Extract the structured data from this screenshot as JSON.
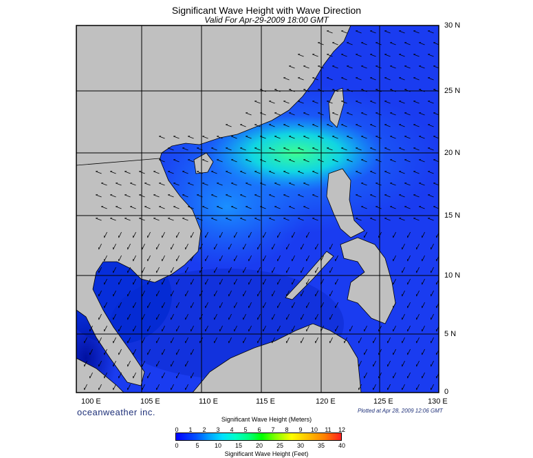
{
  "header": {
    "title": "Significant Wave Height with Wave Direction",
    "subtitle": "Valid For Apr-29-2009 18:00 GMT"
  },
  "map": {
    "lat_labels": [
      "30 N",
      "25 N",
      "20 N",
      "15 N",
      "10 N",
      "5 N",
      "0"
    ],
    "lon_labels": [
      "100 E",
      "105 E",
      "110 E",
      "115 E",
      "120 E",
      "125 E",
      "130 E"
    ],
    "land_color": "#c0c0c0",
    "sea_base_color": "#1a3cf0",
    "arrow_color": "#000000"
  },
  "footer": {
    "brand": "oceanweather inc.",
    "plotted": "Plotted at Apr 28, 2009 12:06 GMT"
  },
  "colorbar": {
    "title_meters": "Significant Wave Height (Meters)",
    "title_feet": "Significant Wave Height (Feet)",
    "meters_ticks": [
      "0",
      "1",
      "2",
      "3",
      "4",
      "5",
      "6",
      "7",
      "8",
      "9",
      "10",
      "11",
      "12"
    ],
    "feet_ticks": [
      "0",
      "5",
      "10",
      "15",
      "20",
      "25",
      "30",
      "35",
      "40"
    ]
  }
}
